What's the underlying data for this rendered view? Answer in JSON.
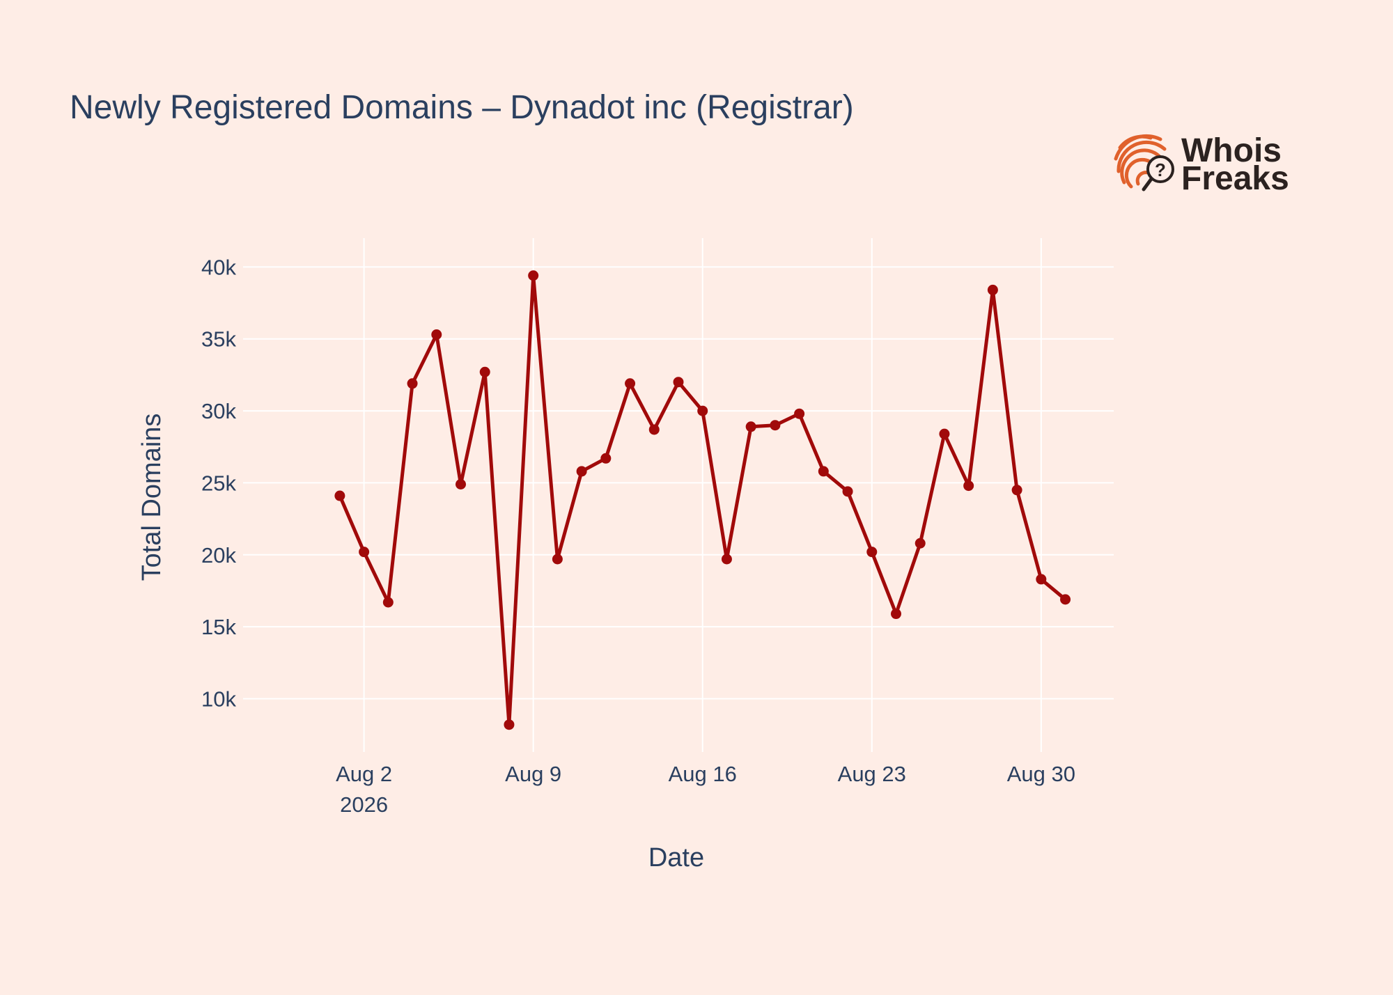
{
  "chart_data": {
    "type": "line",
    "title": "Newly Registered Domains – Dynadot inc (Registrar)",
    "xlabel": "Date",
    "ylabel": "Total Domains",
    "x": [
      "2026-08-01",
      "2026-08-02",
      "2026-08-03",
      "2026-08-04",
      "2026-08-05",
      "2026-08-06",
      "2026-08-07",
      "2026-08-08",
      "2026-08-09",
      "2026-08-10",
      "2026-08-11",
      "2026-08-12",
      "2026-08-13",
      "2026-08-14",
      "2026-08-15",
      "2026-08-16",
      "2026-08-17",
      "2026-08-18",
      "2026-08-19",
      "2026-08-20",
      "2026-08-21",
      "2026-08-22",
      "2026-08-23",
      "2026-08-24",
      "2026-08-25",
      "2026-08-26",
      "2026-08-27",
      "2026-08-28",
      "2026-08-29",
      "2026-08-30",
      "2026-08-31"
    ],
    "series": [
      {
        "color": "#a10a0a",
        "values": [
          24100,
          20200,
          16700,
          31900,
          35300,
          24900,
          32700,
          8200,
          39400,
          19700,
          25800,
          26700,
          31900,
          28700,
          32000,
          30000,
          19700,
          28900,
          29000,
          29800,
          25800,
          24400,
          20200,
          15900,
          20800,
          28400,
          24800,
          38400,
          24500,
          18300,
          16900
        ]
      }
    ],
    "xticks": [
      {
        "date": "2026-08-02",
        "label": "Aug 2",
        "sublabel": "2026"
      },
      {
        "date": "2026-08-09",
        "label": "Aug 9"
      },
      {
        "date": "2026-08-16",
        "label": "Aug 16"
      },
      {
        "date": "2026-08-23",
        "label": "Aug 23"
      },
      {
        "date": "2026-08-30",
        "label": "Aug 30"
      }
    ],
    "yticks": [
      {
        "value": 10000,
        "label": "10k"
      },
      {
        "value": 15000,
        "label": "15k"
      },
      {
        "value": 20000,
        "label": "20k"
      },
      {
        "value": 25000,
        "label": "25k"
      },
      {
        "value": 30000,
        "label": "30k"
      },
      {
        "value": 35000,
        "label": "35k"
      },
      {
        "value": 40000,
        "label": "40k"
      }
    ],
    "xlim": [
      "2026-07-28",
      "2026-09-02"
    ],
    "ylim": [
      6300,
      42000
    ],
    "grid": true,
    "legend": false
  },
  "logo": {
    "line1": "Whois",
    "line2": "Freaks",
    "colors": {
      "mark": "#e0612c",
      "text": "#2b2220"
    }
  },
  "colors": {
    "background": "#feede6",
    "text": "#2a3f5f",
    "grid": "#ffffff",
    "series": "#a10a0a"
  }
}
